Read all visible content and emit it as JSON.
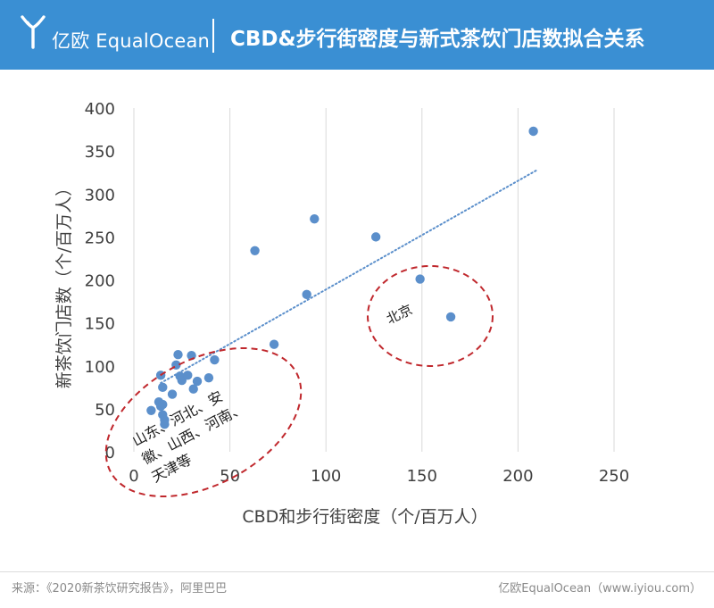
{
  "header": {
    "brand": "亿欧 EqualOcean",
    "title": "CBD&步行街密度与新式茶饮门店数拟合关系",
    "logo_icon": "equalocean-logo-icon"
  },
  "footer": {
    "source": "来源：《2020新茶饮研究报告》，阿里巴巴",
    "brand_url": "亿欧EqualOcean（www.iyiou.com）"
  },
  "chart_data": {
    "type": "scatter",
    "xlabel": "CBD和步行街密度（个/百万人）",
    "ylabel": "新茶饮门店数（个/百万人）",
    "xlim": [
      0,
      250
    ],
    "ylim": [
      0,
      400
    ],
    "x_ticks": [
      "0",
      "50",
      "100",
      "150",
      "200",
      "250"
    ],
    "y_ticks": [
      "0",
      "50",
      "100",
      "150",
      "200",
      "250",
      "300",
      "350",
      "400"
    ],
    "grid": "vertical",
    "point_color": "#5b8fcb",
    "trendline_color": "#5b8fcb",
    "annotation_color": "#c0282d",
    "points": [
      {
        "x": 9,
        "y": 48
      },
      {
        "x": 13,
        "y": 58
      },
      {
        "x": 14,
        "y": 53
      },
      {
        "x": 15,
        "y": 55
      },
      {
        "x": 15,
        "y": 43
      },
      {
        "x": 16,
        "y": 37
      },
      {
        "x": 16,
        "y": 32
      },
      {
        "x": 15,
        "y": 75
      },
      {
        "x": 14,
        "y": 89
      },
      {
        "x": 20,
        "y": 67
      },
      {
        "x": 22,
        "y": 101
      },
      {
        "x": 23,
        "y": 113
      },
      {
        "x": 24,
        "y": 88
      },
      {
        "x": 25,
        "y": 83
      },
      {
        "x": 28,
        "y": 89
      },
      {
        "x": 30,
        "y": 112
      },
      {
        "x": 31,
        "y": 73
      },
      {
        "x": 33,
        "y": 82
      },
      {
        "x": 39,
        "y": 86
      },
      {
        "x": 42,
        "y": 107
      },
      {
        "x": 63,
        "y": 234
      },
      {
        "x": 73,
        "y": 125
      },
      {
        "x": 90,
        "y": 183
      },
      {
        "x": 94,
        "y": 271
      },
      {
        "x": 126,
        "y": 250
      },
      {
        "x": 149,
        "y": 201
      },
      {
        "x": 165,
        "y": 157
      },
      {
        "x": 208,
        "y": 373
      }
    ],
    "trendline": {
      "x": [
        14,
        210
      ],
      "y": [
        80,
        328
      ]
    },
    "annotations": [
      {
        "label": "北京"
      },
      {
        "lines": [
          "山东、河北、安",
          "徽、山西、河南、",
          "天津等"
        ]
      }
    ]
  }
}
